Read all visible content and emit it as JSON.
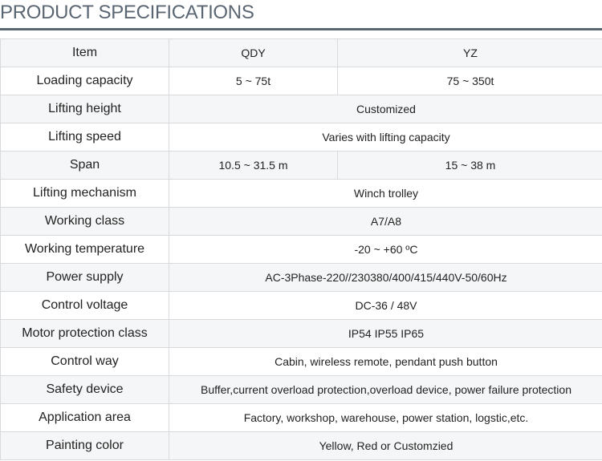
{
  "title": "PRODUCT SPECIFICATIONS",
  "header": {
    "item": "Item",
    "col1": "QDY",
    "col2": "YZ"
  },
  "rows": [
    {
      "label": "Loading capacity",
      "qdy": "5 ~ 75t",
      "yz": "75 ~ 350t"
    },
    {
      "label": "Lifting height",
      "value": "Customized"
    },
    {
      "label": "Lifting speed",
      "value": "Varies with lifting capacity"
    },
    {
      "label": "Span",
      "qdy": "10.5 ~ 31.5 m",
      "yz": "15 ~ 38 m"
    },
    {
      "label": "Lifting mechanism",
      "value": "Winch trolley"
    },
    {
      "label": "Working class",
      "value": "A7/A8"
    },
    {
      "label": "Working temperature",
      "value": "-20 ~ +60 ºC"
    },
    {
      "label": "Power supply",
      "value": "AC-3Phase-220//230380/400/415/440V-50/60Hz"
    },
    {
      "label": "Control voltage",
      "value": "DC-36 / 48V"
    },
    {
      "label": "Motor protection class",
      "value": "IP54 IP55 IP65"
    },
    {
      "label": "Control way",
      "value": "Cabin, wireless remote, pendant push button"
    },
    {
      "label": "Safety device",
      "value": "Buffer,current overload protection,overload device, power failure protection"
    },
    {
      "label": "Application area",
      "value": "Factory, workshop, warehouse, power station, logstic,etc."
    },
    {
      "label": "Painting color",
      "value": "Yellow, Red or Customzied"
    }
  ]
}
